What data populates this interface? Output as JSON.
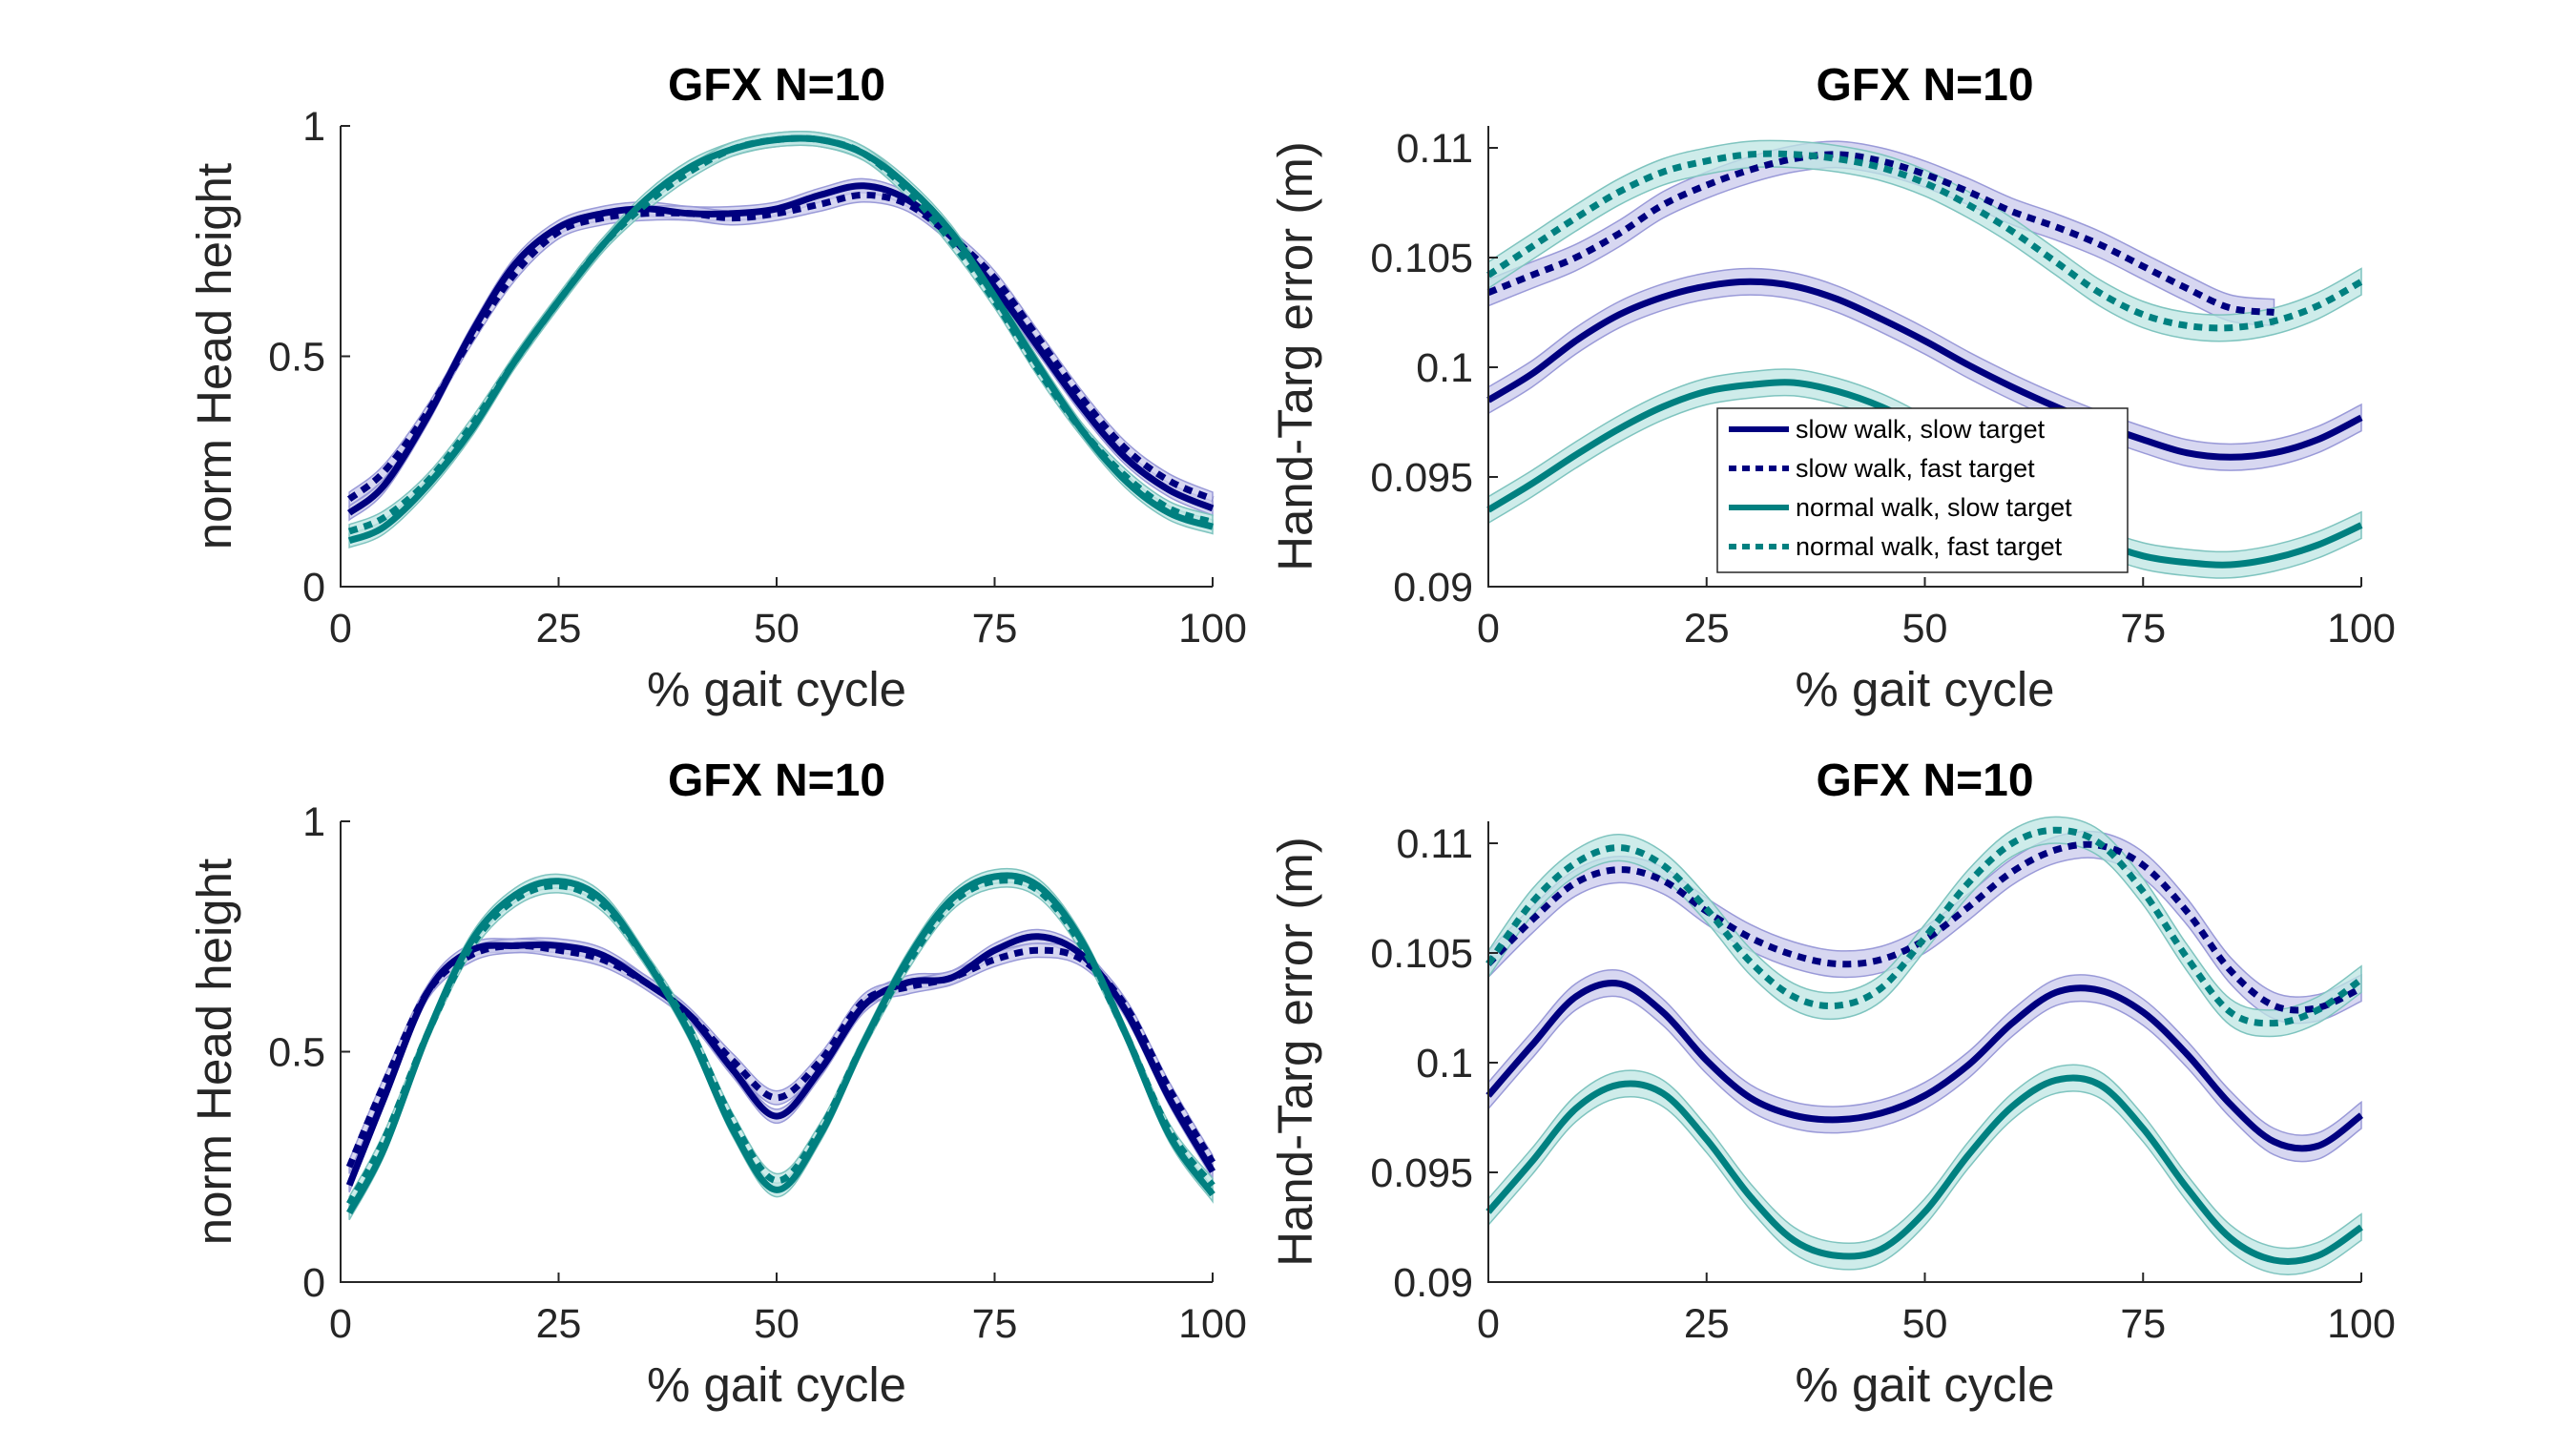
{
  "colors": {
    "navy": "#00007f",
    "teal": "#008080",
    "navy_band": "#c9c9ec",
    "teal_band": "#bde6e3"
  },
  "legend": [
    {
      "label": "slow walk, slow target",
      "color": "#00007f",
      "dash": false
    },
    {
      "label": "slow walk, fast target",
      "color": "#00007f",
      "dash": true
    },
    {
      "label": "normal walk, slow target",
      "color": "#008080",
      "dash": false
    },
    {
      "label": "normal walk, fast target",
      "color": "#008080",
      "dash": true
    }
  ],
  "chart_data": [
    {
      "type": "line",
      "title": "GFX N=10",
      "xlabel": "% gait cycle",
      "ylabel": "norm Head height",
      "xlim": [
        0,
        100
      ],
      "ylim": [
        0,
        1
      ],
      "xticks": [
        "0",
        "25",
        "50",
        "75",
        "100"
      ],
      "yticks": [
        "0",
        "0.5",
        "1"
      ],
      "ytick_values": [
        0,
        0.5,
        1
      ],
      "legend": false,
      "band": 0.015,
      "series": [
        {
          "color": "#00007f",
          "dash": false,
          "x": [
            1,
            5,
            10,
            15,
            20,
            25,
            30,
            35,
            40,
            45,
            50,
            55,
            60,
            65,
            70,
            75,
            80,
            85,
            90,
            95,
            100
          ],
          "y": [
            0.16,
            0.22,
            0.37,
            0.55,
            0.7,
            0.78,
            0.81,
            0.82,
            0.81,
            0.81,
            0.82,
            0.85,
            0.87,
            0.84,
            0.76,
            0.65,
            0.52,
            0.39,
            0.28,
            0.21,
            0.17
          ]
        },
        {
          "color": "#00007f",
          "dash": true,
          "x": [
            1,
            5,
            10,
            15,
            20,
            25,
            30,
            35,
            40,
            45,
            50,
            55,
            60,
            65,
            70,
            75,
            80,
            85,
            90,
            95,
            100
          ],
          "y": [
            0.19,
            0.25,
            0.38,
            0.54,
            0.68,
            0.77,
            0.8,
            0.81,
            0.81,
            0.8,
            0.81,
            0.83,
            0.85,
            0.83,
            0.76,
            0.67,
            0.54,
            0.41,
            0.3,
            0.23,
            0.19
          ]
        },
        {
          "color": "#008080",
          "dash": false,
          "x": [
            1,
            5,
            10,
            15,
            20,
            25,
            30,
            35,
            40,
            45,
            50,
            55,
            60,
            65,
            70,
            75,
            80,
            85,
            90,
            95,
            100
          ],
          "y": [
            0.1,
            0.13,
            0.22,
            0.34,
            0.49,
            0.62,
            0.74,
            0.84,
            0.91,
            0.95,
            0.97,
            0.97,
            0.94,
            0.87,
            0.77,
            0.63,
            0.48,
            0.34,
            0.23,
            0.16,
            0.13
          ]
        },
        {
          "color": "#008080",
          "dash": true,
          "x": [
            1,
            5,
            10,
            15,
            20,
            25,
            30,
            35,
            40,
            45,
            50,
            55,
            60,
            65,
            70,
            75,
            80,
            85,
            90,
            95,
            100
          ],
          "y": [
            0.12,
            0.15,
            0.23,
            0.35,
            0.49,
            0.62,
            0.74,
            0.83,
            0.9,
            0.95,
            0.97,
            0.97,
            0.94,
            0.86,
            0.75,
            0.62,
            0.47,
            0.34,
            0.24,
            0.17,
            0.14
          ]
        }
      ]
    },
    {
      "type": "line",
      "title": "GFX N=10",
      "xlabel": "% gait cycle",
      "ylabel": "Hand-Targ error (m)",
      "xlim": [
        0,
        100
      ],
      "ylim": [
        0.09,
        0.111
      ],
      "xticks": [
        "0",
        "25",
        "50",
        "75",
        "100"
      ],
      "yticks": [
        "0.09",
        "0.095",
        "0.1",
        "0.105",
        "0.11"
      ],
      "ytick_values": [
        0.09,
        0.095,
        0.1,
        0.105,
        0.11
      ],
      "legend": true,
      "band": 0.0006,
      "series": [
        {
          "color": "#00007f",
          "dash": false,
          "x": [
            0,
            5,
            10,
            15,
            20,
            25,
            30,
            35,
            40,
            45,
            50,
            55,
            60,
            65,
            70,
            75,
            80,
            85,
            90,
            95,
            100
          ],
          "y": [
            0.0985,
            0.0997,
            0.1012,
            0.1024,
            0.1032,
            0.1037,
            0.1039,
            0.1037,
            0.1031,
            0.1022,
            0.1012,
            0.1001,
            0.0991,
            0.0982,
            0.0974,
            0.0967,
            0.0961,
            0.0959,
            0.0961,
            0.0967,
            0.0977
          ]
        },
        {
          "color": "#00007f",
          "dash": true,
          "x": [
            0,
            5,
            10,
            15,
            20,
            25,
            30,
            35,
            40,
            45,
            50,
            55,
            60,
            65,
            70,
            75,
            80,
            85,
            90
          ],
          "y": [
            0.1034,
            0.1042,
            0.105,
            0.1061,
            0.1074,
            0.1083,
            0.109,
            0.1095,
            0.1097,
            0.1094,
            0.1088,
            0.108,
            0.1071,
            0.1064,
            0.1056,
            0.1046,
            0.1036,
            0.1027,
            0.1025
          ]
        },
        {
          "color": "#008080",
          "dash": false,
          "x": [
            0,
            5,
            10,
            15,
            20,
            25,
            30,
            35,
            40,
            45,
            50,
            55,
            60,
            65,
            70,
            75,
            80,
            85,
            90,
            95,
            100
          ],
          "y": [
            0.0935,
            0.0947,
            0.096,
            0.0972,
            0.0982,
            0.0989,
            0.0992,
            0.0993,
            0.0989,
            0.0982,
            0.0972,
            0.096,
            0.0947,
            0.0932,
            0.0921,
            0.0914,
            0.0911,
            0.091,
            0.0913,
            0.0919,
            0.0928
          ]
        },
        {
          "color": "#008080",
          "dash": true,
          "x": [
            0,
            5,
            10,
            15,
            20,
            25,
            30,
            35,
            40,
            45,
            50,
            55,
            60,
            65,
            70,
            75,
            80,
            85,
            90,
            95,
            100
          ],
          "y": [
            0.1042,
            0.1055,
            0.1068,
            0.108,
            0.1089,
            0.1094,
            0.1097,
            0.1097,
            0.1095,
            0.1091,
            0.1084,
            0.1074,
            0.1062,
            0.1048,
            0.1034,
            0.1024,
            0.1019,
            0.1018,
            0.1021,
            0.1028,
            0.1039
          ]
        }
      ]
    },
    {
      "type": "line",
      "title": "GFX N=10",
      "xlabel": "% gait cycle",
      "ylabel": "norm Head height",
      "xlim": [
        0,
        100
      ],
      "ylim": [
        0,
        1
      ],
      "xticks": [
        "0",
        "25",
        "50",
        "75",
        "100"
      ],
      "yticks": [
        "0",
        "0.5",
        "1"
      ],
      "ytick_values": [
        0,
        0.5,
        1
      ],
      "legend": false,
      "band": 0.015,
      "series": [
        {
          "color": "#00007f",
          "dash": false,
          "x": [
            1,
            5,
            10,
            15,
            20,
            25,
            30,
            35,
            40,
            45,
            50,
            55,
            60,
            65,
            70,
            75,
            80,
            85,
            90,
            95,
            100
          ],
          "y": [
            0.21,
            0.4,
            0.63,
            0.72,
            0.73,
            0.73,
            0.71,
            0.65,
            0.58,
            0.46,
            0.36,
            0.46,
            0.6,
            0.65,
            0.66,
            0.72,
            0.75,
            0.71,
            0.59,
            0.4,
            0.24
          ]
        },
        {
          "color": "#00007f",
          "dash": true,
          "x": [
            1,
            5,
            10,
            15,
            20,
            25,
            30,
            35,
            40,
            45,
            50,
            55,
            60,
            65,
            70,
            75,
            80,
            85,
            90,
            95,
            100
          ],
          "y": [
            0.25,
            0.43,
            0.63,
            0.71,
            0.73,
            0.72,
            0.7,
            0.65,
            0.58,
            0.48,
            0.4,
            0.48,
            0.61,
            0.64,
            0.66,
            0.7,
            0.72,
            0.7,
            0.6,
            0.42,
            0.26
          ]
        },
        {
          "color": "#008080",
          "dash": false,
          "x": [
            1,
            5,
            10,
            15,
            20,
            25,
            30,
            35,
            40,
            45,
            50,
            55,
            60,
            65,
            70,
            75,
            80,
            85,
            90,
            95,
            100
          ],
          "y": [
            0.15,
            0.29,
            0.54,
            0.74,
            0.84,
            0.87,
            0.83,
            0.7,
            0.54,
            0.33,
            0.2,
            0.32,
            0.52,
            0.7,
            0.83,
            0.88,
            0.86,
            0.74,
            0.54,
            0.32,
            0.19
          ]
        },
        {
          "color": "#008080",
          "dash": true,
          "x": [
            1,
            5,
            10,
            15,
            20,
            25,
            30,
            35,
            40,
            45,
            50,
            55,
            60,
            65,
            70,
            75,
            80,
            85,
            90,
            95,
            100
          ],
          "y": [
            0.17,
            0.31,
            0.54,
            0.73,
            0.83,
            0.86,
            0.82,
            0.7,
            0.55,
            0.35,
            0.22,
            0.33,
            0.52,
            0.69,
            0.82,
            0.87,
            0.85,
            0.73,
            0.54,
            0.33,
            0.21
          ]
        }
      ]
    },
    {
      "type": "line",
      "title": "GFX N=10",
      "xlabel": "% gait cycle",
      "ylabel": "Hand-Targ error (m)",
      "xlim": [
        0,
        100
      ],
      "ylim": [
        0.09,
        0.111
      ],
      "xticks": [
        "0",
        "25",
        "50",
        "75",
        "100"
      ],
      "yticks": [
        "0.09",
        "0.095",
        "0.1",
        "0.105",
        "0.11"
      ],
      "ytick_values": [
        0.09,
        0.095,
        0.1,
        0.105,
        0.11
      ],
      "legend": false,
      "band": 0.0006,
      "series": [
        {
          "color": "#00007f",
          "dash": false,
          "x": [
            0,
            5,
            10,
            15,
            20,
            25,
            30,
            35,
            40,
            45,
            50,
            55,
            60,
            65,
            70,
            75,
            80,
            85,
            90,
            95,
            100
          ],
          "y": [
            0.0985,
            0.1008,
            0.103,
            0.1036,
            0.1023,
            0.1001,
            0.0984,
            0.0976,
            0.0974,
            0.0977,
            0.0985,
            0.0999,
            0.1018,
            0.1032,
            0.1033,
            0.1023,
            0.1004,
            0.0981,
            0.0964,
            0.0962,
            0.0976
          ]
        },
        {
          "color": "#00007f",
          "dash": true,
          "x": [
            0,
            5,
            10,
            15,
            20,
            25,
            30,
            35,
            40,
            45,
            50,
            55,
            60,
            65,
            70,
            75,
            80,
            85,
            90,
            95,
            100
          ],
          "y": [
            0.1045,
            0.1065,
            0.1082,
            0.1088,
            0.1083,
            0.1069,
            0.1057,
            0.1049,
            0.1045,
            0.1047,
            0.1056,
            0.1071,
            0.1087,
            0.1097,
            0.1099,
            0.109,
            0.1069,
            0.1042,
            0.1026,
            0.1025,
            0.1034
          ]
        },
        {
          "color": "#008080",
          "dash": false,
          "x": [
            0,
            5,
            10,
            15,
            20,
            25,
            30,
            35,
            40,
            45,
            50,
            55,
            60,
            65,
            70,
            75,
            80,
            85,
            90,
            95,
            100
          ],
          "y": [
            0.0932,
            0.0955,
            0.0979,
            0.099,
            0.0986,
            0.0965,
            0.0939,
            0.0919,
            0.0912,
            0.0915,
            0.0932,
            0.0958,
            0.098,
            0.0992,
            0.099,
            0.097,
            0.0943,
            0.092,
            0.091,
            0.0912,
            0.0925
          ]
        },
        {
          "color": "#008080",
          "dash": true,
          "x": [
            0,
            5,
            10,
            15,
            20,
            25,
            30,
            35,
            40,
            45,
            50,
            55,
            60,
            65,
            70,
            75,
            80,
            85,
            90,
            95,
            100
          ],
          "y": [
            0.1045,
            0.1073,
            0.1091,
            0.1098,
            0.109,
            0.107,
            0.1046,
            0.103,
            0.1026,
            0.1034,
            0.1057,
            0.1082,
            0.11,
            0.1106,
            0.11,
            0.1078,
            0.1048,
            0.1023,
            0.1018,
            0.1024,
            0.1038
          ]
        }
      ]
    }
  ]
}
